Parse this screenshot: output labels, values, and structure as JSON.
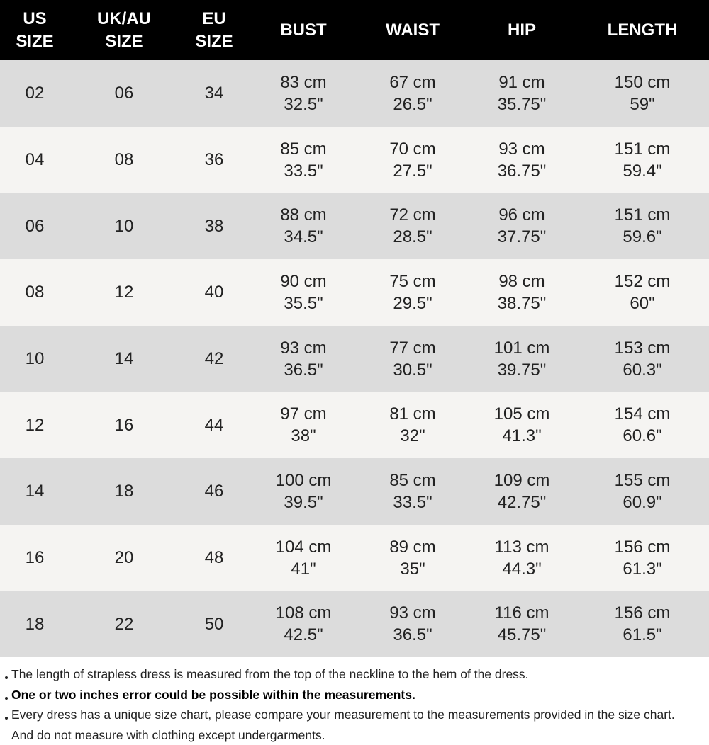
{
  "table": {
    "header": [
      [
        "US",
        "SIZE"
      ],
      [
        "UK/AU",
        "SIZE"
      ],
      [
        "EU",
        "SIZE"
      ],
      [
        "BUST"
      ],
      [
        "WAIST"
      ],
      [
        "HIP"
      ],
      [
        "LENGTH"
      ]
    ],
    "rows": [
      [
        [
          "02"
        ],
        [
          "06"
        ],
        [
          "34"
        ],
        [
          "83 cm",
          "32.5\""
        ],
        [
          "67 cm",
          "26.5\""
        ],
        [
          "91 cm",
          "35.75\""
        ],
        [
          "150 cm",
          "59\""
        ]
      ],
      [
        [
          "04"
        ],
        [
          "08"
        ],
        [
          "36"
        ],
        [
          "85 cm",
          "33.5\""
        ],
        [
          "70 cm",
          "27.5\""
        ],
        [
          "93 cm",
          "36.75\""
        ],
        [
          "151 cm",
          "59.4\""
        ]
      ],
      [
        [
          "06"
        ],
        [
          "10"
        ],
        [
          "38"
        ],
        [
          "88 cm",
          "34.5\""
        ],
        [
          "72 cm",
          "28.5\""
        ],
        [
          "96 cm",
          "37.75\""
        ],
        [
          "151 cm",
          "59.6\""
        ]
      ],
      [
        [
          "08"
        ],
        [
          "12"
        ],
        [
          "40"
        ],
        [
          "90 cm",
          "35.5\""
        ],
        [
          "75 cm",
          "29.5\""
        ],
        [
          "98 cm",
          "38.75\""
        ],
        [
          "152 cm",
          "60\""
        ]
      ],
      [
        [
          "10"
        ],
        [
          "14"
        ],
        [
          "42"
        ],
        [
          "93 cm",
          "36.5\""
        ],
        [
          "77 cm",
          "30.5\""
        ],
        [
          "101 cm",
          "39.75\""
        ],
        [
          "153 cm",
          "60.3\""
        ]
      ],
      [
        [
          "12"
        ],
        [
          "16"
        ],
        [
          "44"
        ],
        [
          "97 cm",
          "38\""
        ],
        [
          "81 cm",
          "32\""
        ],
        [
          "105 cm",
          "41.3\""
        ],
        [
          "154 cm",
          "60.6\""
        ]
      ],
      [
        [
          "14"
        ],
        [
          "18"
        ],
        [
          "46"
        ],
        [
          "100 cm",
          "39.5\""
        ],
        [
          "85 cm",
          "33.5\""
        ],
        [
          "109 cm",
          "42.75\""
        ],
        [
          "155 cm",
          "60.9\""
        ]
      ],
      [
        [
          "16"
        ],
        [
          "20"
        ],
        [
          "48"
        ],
        [
          "104 cm",
          "41\""
        ],
        [
          "89 cm",
          "35\""
        ],
        [
          "113 cm",
          "44.3\""
        ],
        [
          "156 cm",
          "61.3\""
        ]
      ],
      [
        [
          "18"
        ],
        [
          "22"
        ],
        [
          "50"
        ],
        [
          "108 cm",
          "42.5\""
        ],
        [
          "93 cm",
          "36.5\""
        ],
        [
          "116 cm",
          "45.75\""
        ],
        [
          "156 cm",
          "61.5\""
        ]
      ]
    ]
  },
  "notes": [
    {
      "text": "The length of strapless dress is measured from the top of the neckline to the hem of the dress.",
      "bold": false
    },
    {
      "text": "One or two inches error could be possible within the measurements.",
      "bold": true
    },
    {
      "text": "Every dress has a unique size chart, please compare your measurement to the measurements provided in the size chart. And do not measure with clothing except undergarments.",
      "bold": false
    }
  ]
}
